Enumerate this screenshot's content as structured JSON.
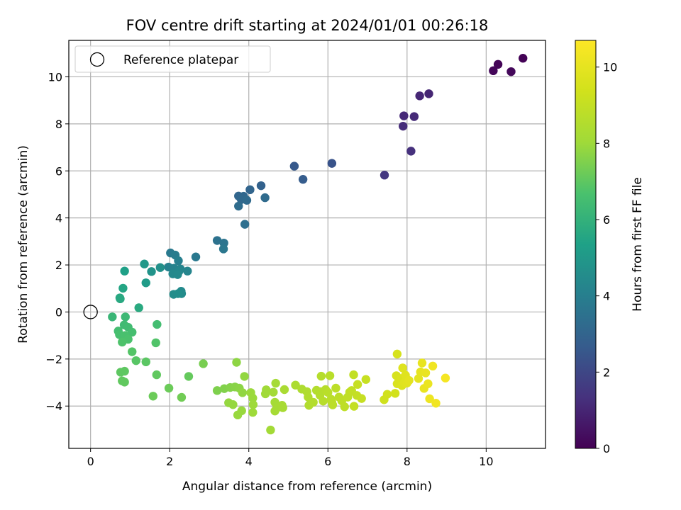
{
  "chart_data": {
    "type": "scatter",
    "title": "FOV centre drift starting at 2024/01/01 00:26:18",
    "xlabel": "Angular distance from reference (arcmin)",
    "ylabel": "Rotation from reference (arcmin)",
    "xlim": [
      -0.55,
      11.5
    ],
    "ylim": [
      -5.8,
      11.55
    ],
    "xticks": [
      0,
      2,
      4,
      6,
      8,
      10
    ],
    "yticks": [
      -4,
      -2,
      0,
      2,
      4,
      6,
      8,
      10
    ],
    "grid": true,
    "colormap": "viridis",
    "colorbar": {
      "label": "Hours from first FF file",
      "range": [
        0,
        10.7
      ],
      "ticks": [
        0,
        2,
        4,
        6,
        8,
        10
      ]
    },
    "legend": {
      "position": "top-left",
      "entries": [
        "Reference platepar"
      ]
    },
    "reference_point": {
      "x": 0,
      "y": 0
    },
    "points": [
      [
        10.93,
        10.79,
        0.05
      ],
      [
        10.3,
        10.53,
        0.1
      ],
      [
        10.18,
        10.26,
        0.15
      ],
      [
        10.63,
        10.22,
        0.2
      ],
      [
        8.55,
        9.28,
        1.0
      ],
      [
        8.32,
        9.19,
        1.05
      ],
      [
        7.92,
        8.34,
        1.1
      ],
      [
        8.18,
        8.31,
        1.15
      ],
      [
        7.9,
        7.9,
        1.2
      ],
      [
        8.1,
        6.84,
        1.3
      ],
      [
        7.43,
        5.82,
        1.5
      ],
      [
        6.1,
        6.32,
        2.4
      ],
      [
        5.15,
        6.2,
        2.6
      ],
      [
        5.37,
        5.64,
        2.7
      ],
      [
        4.31,
        5.37,
        2.9
      ],
      [
        4.03,
        5.2,
        3.0
      ],
      [
        3.74,
        4.93,
        3.05
      ],
      [
        3.87,
        4.92,
        3.1
      ],
      [
        3.81,
        4.78,
        3.15
      ],
      [
        3.95,
        4.75,
        3.2
      ],
      [
        4.41,
        4.86,
        3.25
      ],
      [
        3.74,
        4.5,
        3.3
      ],
      [
        3.9,
        3.73,
        3.4
      ],
      [
        3.2,
        3.04,
        3.5
      ],
      [
        3.37,
        2.93,
        3.6
      ],
      [
        3.36,
        2.68,
        3.7
      ],
      [
        2.66,
        2.34,
        3.75
      ],
      [
        2.02,
        2.51,
        3.8
      ],
      [
        2.14,
        2.42,
        3.9
      ],
      [
        2.22,
        2.18,
        4.0
      ],
      [
        1.97,
        1.91,
        4.1
      ],
      [
        2.11,
        1.86,
        4.15
      ],
      [
        2.27,
        1.83,
        4.2
      ],
      [
        2.45,
        1.74,
        4.25
      ],
      [
        2.23,
        1.72,
        4.3
      ],
      [
        2.08,
        1.62,
        4.35
      ],
      [
        2.2,
        1.59,
        4.4
      ],
      [
        2.29,
        0.88,
        4.45
      ],
      [
        2.3,
        0.78,
        4.5
      ],
      [
        2.1,
        0.75,
        4.55
      ],
      [
        2.21,
        0.78,
        4.6
      ],
      [
        1.76,
        1.89,
        4.7
      ],
      [
        1.54,
        1.72,
        4.8
      ],
      [
        1.36,
        2.04,
        5.0
      ],
      [
        1.4,
        1.24,
        5.1
      ],
      [
        0.86,
        1.74,
        5.3
      ],
      [
        0.82,
        1.01,
        5.5
      ],
      [
        0.74,
        0.6,
        5.6
      ],
      [
        0.75,
        0.56,
        5.65
      ],
      [
        1.22,
        0.18,
        5.7
      ],
      [
        0.55,
        -0.21,
        6.2
      ],
      [
        0.88,
        -0.21,
        6.3
      ],
      [
        1.68,
        -0.53,
        6.5
      ],
      [
        0.85,
        -0.55,
        6.4
      ],
      [
        0.95,
        -0.65,
        6.45
      ],
      [
        0.7,
        -0.81,
        6.5
      ],
      [
        1.05,
        -0.86,
        6.55
      ],
      [
        0.73,
        -0.96,
        6.6
      ],
      [
        0.87,
        -1.0,
        6.65
      ],
      [
        0.95,
        -1.16,
        6.7
      ],
      [
        0.8,
        -1.28,
        6.75
      ],
      [
        1.65,
        -1.31,
        6.8
      ],
      [
        1.05,
        -1.69,
        6.85
      ],
      [
        1.15,
        -2.07,
        6.9
      ],
      [
        1.4,
        -2.12,
        6.95
      ],
      [
        0.76,
        -2.56,
        7.0
      ],
      [
        0.86,
        -2.52,
        7.0
      ],
      [
        1.67,
        -2.67,
        7.05
      ],
      [
        0.8,
        -2.93,
        7.05
      ],
      [
        0.86,
        -2.98,
        7.05
      ],
      [
        2.48,
        -2.74,
        7.1
      ],
      [
        1.98,
        -3.24,
        7.2
      ],
      [
        1.58,
        -3.58,
        7.2
      ],
      [
        2.3,
        -3.63,
        7.3
      ],
      [
        2.85,
        -2.2,
        7.4
      ],
      [
        3.2,
        -3.34,
        7.5
      ],
      [
        3.38,
        -3.26,
        7.55
      ],
      [
        3.53,
        -3.21,
        7.6
      ],
      [
        3.65,
        -3.19,
        7.65
      ],
      [
        3.76,
        -3.24,
        7.7
      ],
      [
        3.69,
        -2.14,
        7.75
      ],
      [
        3.84,
        -3.43,
        7.8
      ],
      [
        3.89,
        -2.74,
        7.8
      ],
      [
        3.49,
        -3.86,
        7.85
      ],
      [
        3.6,
        -3.94,
        7.85
      ],
      [
        3.82,
        -4.2,
        7.9
      ],
      [
        3.72,
        -4.38,
        7.9
      ],
      [
        4.05,
        -3.43,
        7.95
      ],
      [
        4.1,
        -3.66,
        7.95
      ],
      [
        4.11,
        -3.94,
        8.0
      ],
      [
        4.1,
        -4.27,
        8.0
      ],
      [
        4.44,
        -3.31,
        8.05
      ],
      [
        4.42,
        -3.48,
        8.05
      ],
      [
        4.55,
        -5.02,
        8.1
      ],
      [
        4.62,
        -3.41,
        8.1
      ],
      [
        4.68,
        -3.03,
        8.15
      ],
      [
        4.66,
        -3.84,
        8.15
      ],
      [
        4.66,
        -4.21,
        8.2
      ],
      [
        4.7,
        -4.1,
        8.2
      ],
      [
        4.84,
        -3.97,
        8.25
      ],
      [
        4.86,
        -4.07,
        8.25
      ],
      [
        4.9,
        -3.3,
        8.3
      ],
      [
        5.18,
        -3.11,
        8.35
      ],
      [
        5.34,
        -3.28,
        8.4
      ],
      [
        5.47,
        -3.39,
        8.45
      ],
      [
        5.5,
        -3.62,
        8.5
      ],
      [
        5.52,
        -3.97,
        8.5
      ],
      [
        5.63,
        -3.84,
        8.55
      ],
      [
        5.71,
        -3.33,
        8.55
      ],
      [
        5.8,
        -3.54,
        8.6
      ],
      [
        5.82,
        -3.39,
        8.6
      ],
      [
        5.83,
        -2.73,
        8.6
      ],
      [
        5.88,
        -3.79,
        8.65
      ],
      [
        5.94,
        -3.3,
        8.65
      ],
      [
        6.0,
        -3.42,
        8.7
      ],
      [
        6.05,
        -2.71,
        8.7
      ],
      [
        6.08,
        -3.71,
        8.7
      ],
      [
        6.1,
        -3.84,
        8.75
      ],
      [
        6.12,
        -3.95,
        8.75
      ],
      [
        6.2,
        -3.24,
        8.8
      ],
      [
        6.28,
        -3.62,
        8.8
      ],
      [
        6.35,
        -3.78,
        8.85
      ],
      [
        6.42,
        -4.03,
        8.85
      ],
      [
        6.5,
        -3.62,
        8.9
      ],
      [
        6.55,
        -3.41,
        8.9
      ],
      [
        6.6,
        -3.34,
        8.95
      ],
      [
        6.65,
        -2.67,
        8.95
      ],
      [
        6.66,
        -4.01,
        9.0
      ],
      [
        6.73,
        -3.55,
        9.0
      ],
      [
        6.75,
        -3.08,
        9.05
      ],
      [
        6.85,
        -3.68,
        9.05
      ],
      [
        6.96,
        -2.87,
        9.1
      ],
      [
        7.42,
        -3.73,
        9.3
      ],
      [
        7.5,
        -3.5,
        9.35
      ],
      [
        7.7,
        -3.46,
        9.4
      ],
      [
        7.75,
        -1.79,
        9.5
      ],
      [
        7.73,
        -2.71,
        9.55
      ],
      [
        7.75,
        -3.05,
        9.6
      ],
      [
        7.85,
        -2.83,
        9.65
      ],
      [
        7.87,
        -3.13,
        9.7
      ],
      [
        7.89,
        -2.38,
        9.75
      ],
      [
        7.93,
        -3.0,
        9.8
      ],
      [
        7.96,
        -2.69,
        9.8
      ],
      [
        8.0,
        -3.02,
        9.85
      ],
      [
        8.05,
        -2.91,
        9.9
      ],
      [
        8.29,
        -2.83,
        9.95
      ],
      [
        8.34,
        -2.55,
        10.0
      ],
      [
        8.38,
        -2.17,
        10.05
      ],
      [
        8.43,
        -3.25,
        10.1
      ],
      [
        8.47,
        -2.59,
        10.1
      ],
      [
        8.53,
        -3.05,
        10.15
      ],
      [
        8.57,
        -3.69,
        10.2
      ],
      [
        8.65,
        -2.3,
        10.3
      ],
      [
        8.73,
        -3.88,
        10.35
      ],
      [
        8.97,
        -2.81,
        10.45
      ]
    ]
  }
}
